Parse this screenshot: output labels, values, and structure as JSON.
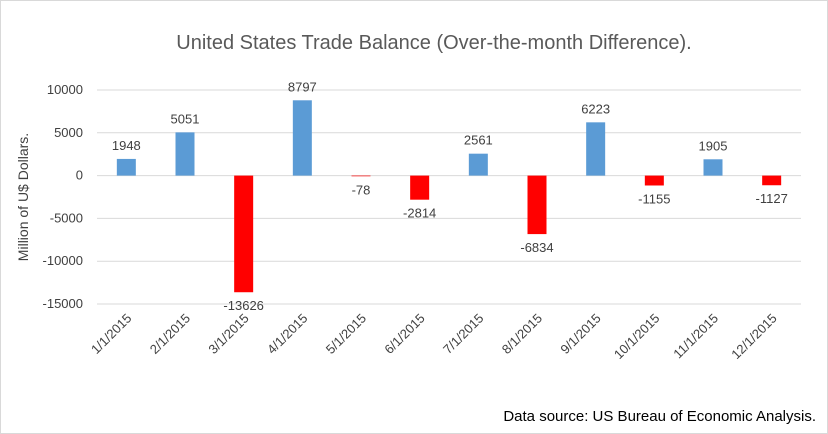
{
  "chart_data": {
    "type": "bar",
    "title": "United States Trade Balance (Over-the-month Difference).",
    "ylabel": "Million of U$ Dollars.",
    "xlabel": "",
    "source": "Data source: US Bureau of Economic Analysis.",
    "categories": [
      "1/1/2015",
      "2/1/2015",
      "3/1/2015",
      "4/1/2015",
      "5/1/2015",
      "6/1/2015",
      "7/1/2015",
      "8/1/2015",
      "9/1/2015",
      "10/1/2015",
      "11/1/2015",
      "12/1/2015"
    ],
    "values": [
      1948,
      5051,
      -13626,
      8797,
      -78,
      -2814,
      2561,
      -6834,
      6223,
      -1155,
      1905,
      -1127
    ],
    "ylim": [
      -15000,
      10000
    ],
    "yticks": [
      10000,
      5000,
      0,
      -5000,
      -10000,
      -15000
    ],
    "ytick_labels": [
      "10000",
      "5000",
      "0",
      "-5000",
      "-10000",
      "-15000"
    ],
    "grid": true,
    "legend": "none",
    "colors": {
      "positive": "#5b9bd5",
      "negative": "#ff0000"
    }
  }
}
